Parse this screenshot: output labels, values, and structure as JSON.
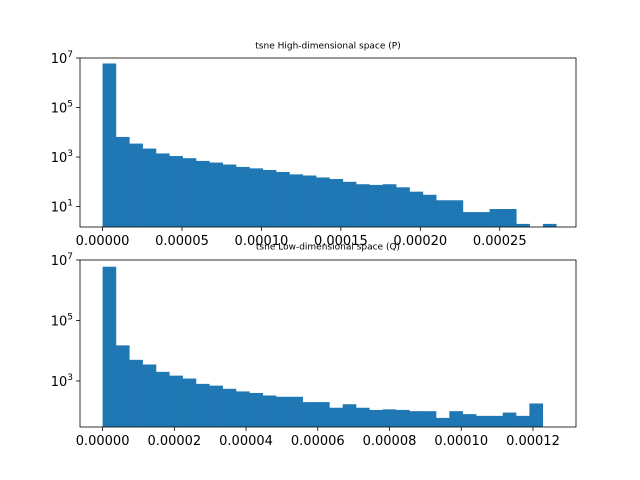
{
  "chart_data": [
    {
      "type": "histogram",
      "title": "tsne High-dimensional space (P)",
      "xlabel": "",
      "ylabel": "",
      "yscale": "log",
      "ylim": [
        1.5,
        10000000
      ],
      "xlim": [
        -1.42e-05,
        0.000298
      ],
      "bin_start": 0.0,
      "bin_width": 8.4e-06,
      "counts": [
        6000000,
        6500,
        3500,
        2200,
        1400,
        1100,
        900,
        700,
        600,
        500,
        400,
        350,
        300,
        250,
        200,
        180,
        150,
        130,
        100,
        80,
        75,
        80,
        60,
        40,
        30,
        18,
        18,
        6,
        6,
        8,
        8,
        2,
        0,
        2
      ],
      "x_ticks": [
        0.0,
        5e-05,
        0.0001,
        0.00015,
        0.0002,
        0.00025
      ],
      "x_tick_labels": [
        "0.00000",
        "0.00005",
        "0.00010",
        "0.00015",
        "0.00020",
        "0.00025"
      ],
      "y_ticks": [
        10,
        1000,
        100000,
        10000000
      ],
      "y_tick_base": "10",
      "y_tick_exps": [
        "1",
        "3",
        "5",
        "7"
      ],
      "bar_color": "#1f77b4",
      "grid": false
    },
    {
      "type": "histogram",
      "title": "tsne Low-dimensional space (Q)",
      "xlabel": "",
      "ylabel": "",
      "yscale": "log",
      "ylim": [
        30,
        10000000
      ],
      "xlim": [
        -6.3e-06,
        0.000132
      ],
      "bin_start": 0.0,
      "bin_width": 3.719e-06,
      "counts": [
        6000000,
        15000,
        5000,
        3500,
        2000,
        1500,
        1200,
        800,
        700,
        550,
        450,
        400,
        330,
        300,
        300,
        200,
        200,
        130,
        170,
        130,
        110,
        115,
        110,
        100,
        100,
        60,
        100,
        80,
        70,
        70,
        90,
        70,
        180
      ],
      "x_ticks": [
        0.0,
        2e-05,
        4e-05,
        6e-05,
        8e-05,
        0.0001,
        0.00012
      ],
      "x_tick_labels": [
        "0.00000",
        "0.00002",
        "0.00004",
        "0.00006",
        "0.00008",
        "0.00010",
        "0.00012"
      ],
      "y_ticks": [
        1000,
        100000,
        10000000
      ],
      "y_tick_base": "10",
      "y_tick_exps": [
        "3",
        "5",
        "7"
      ],
      "bar_color": "#1f77b4",
      "grid": false
    }
  ]
}
